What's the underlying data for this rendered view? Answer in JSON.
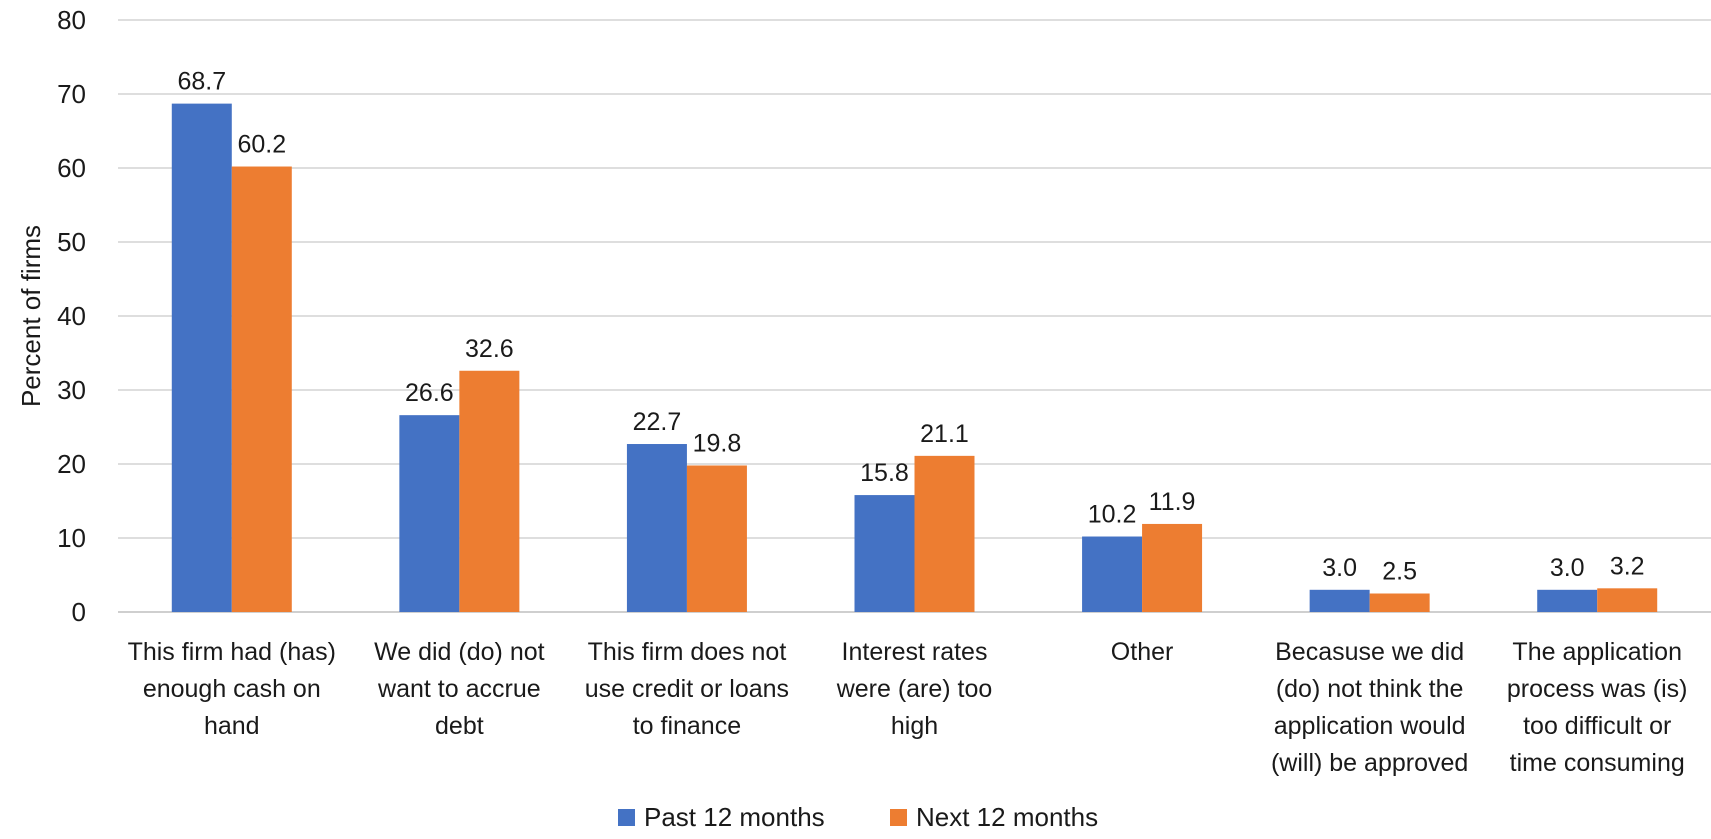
{
  "chart_data": {
    "type": "bar",
    "title": "",
    "xlabel": "",
    "ylabel": "Percent of firms",
    "ylim": [
      0,
      80
    ],
    "yticks": [
      0,
      10,
      20,
      30,
      40,
      50,
      60,
      70,
      80
    ],
    "grid": true,
    "legend_position": "bottom-center",
    "categories": [
      [
        "This firm had (has)",
        "enough cash on",
        "hand"
      ],
      [
        "We did (do) not",
        "want to accrue",
        "debt"
      ],
      [
        "This firm does not",
        "use credit or loans",
        "to finance"
      ],
      [
        "Interest rates",
        "were (are) too",
        "high"
      ],
      [
        "Other"
      ],
      [
        "Becasuse we did",
        "(do) not think the",
        "application would",
        "(will) be approved"
      ],
      [
        "The application",
        "process was (is)",
        "too difficult or",
        "time consuming"
      ]
    ],
    "series": [
      {
        "name": "Past 12 months",
        "color": "#4472C4",
        "values": [
          68.7,
          26.6,
          22.7,
          15.8,
          10.2,
          3.0,
          3.0
        ],
        "labels": [
          "68.7",
          "26.6",
          "22.7",
          "15.8",
          "10.2",
          "3.0",
          "3.0"
        ]
      },
      {
        "name": "Next 12 months",
        "color": "#ED7D31",
        "values": [
          60.2,
          32.6,
          19.8,
          21.1,
          11.9,
          2.5,
          3.2
        ],
        "labels": [
          "60.2",
          "32.6",
          "19.8",
          "21.1",
          "11.9",
          "2.5",
          "3.2"
        ]
      }
    ]
  }
}
